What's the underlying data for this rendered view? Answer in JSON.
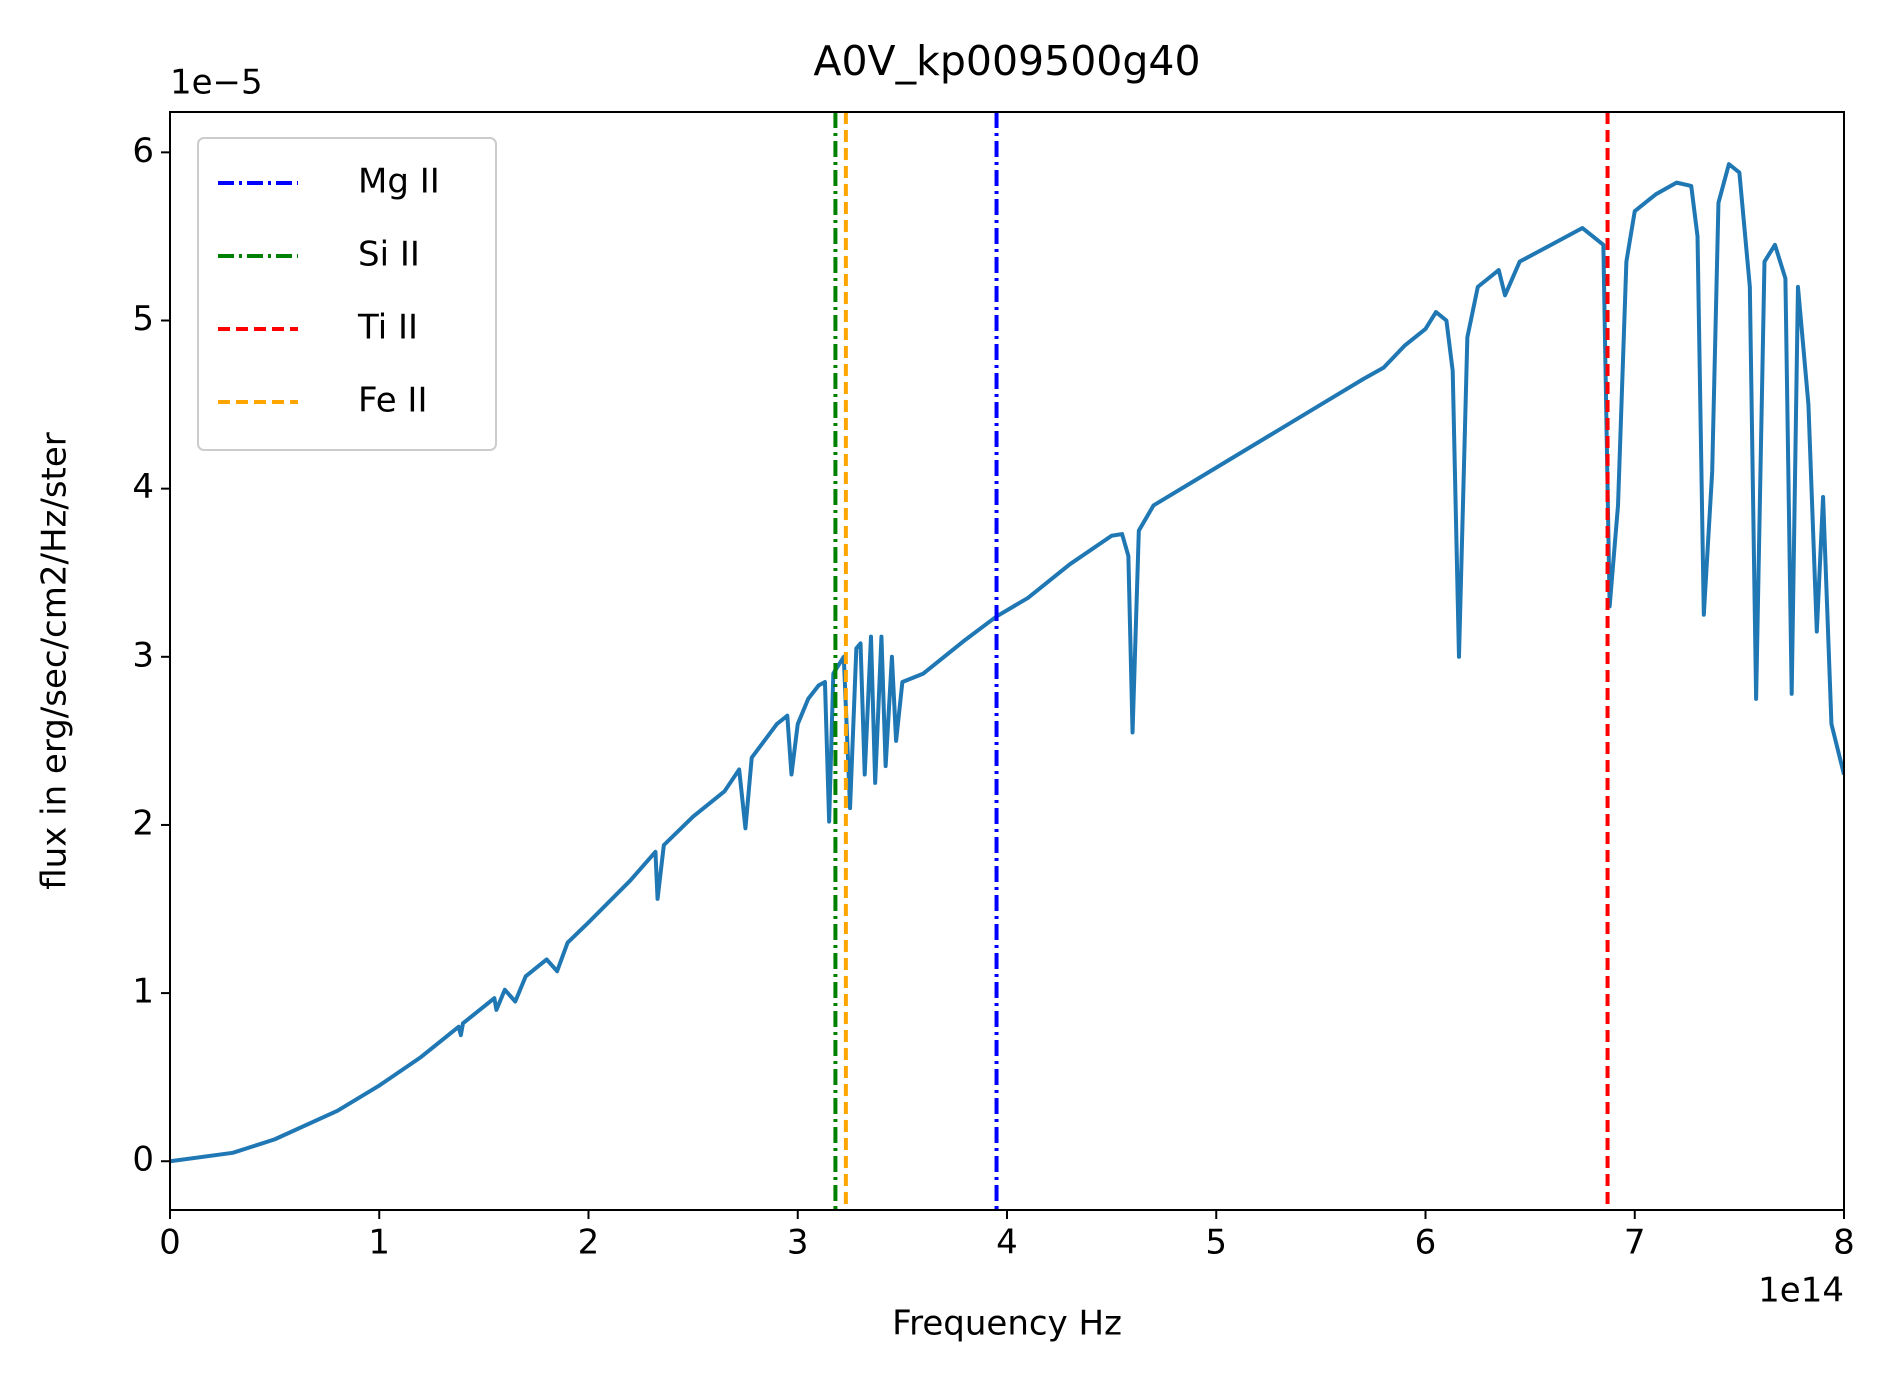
{
  "chart_data": {
    "type": "line",
    "title": "A0V_kp009500g40",
    "x_label": "Frequency Hz",
    "y_label": "flux in erg/sec/cm2/Hz/ster",
    "x_offset_text": "1e14",
    "y_offset_text": "1e−5",
    "xlim": [
      0,
      8
    ],
    "ylim": [
      -0.29,
      6.24
    ],
    "xticks": [
      0,
      1,
      2,
      3,
      4,
      5,
      6,
      7,
      8
    ],
    "yticks": [
      0,
      1,
      2,
      3,
      4,
      5,
      6
    ],
    "legend_position": "upper left",
    "series": [
      {
        "color": "#1f77b4",
        "x": [
          0,
          0.3,
          0.5,
          0.8,
          1.0,
          1.2,
          1.38,
          1.39,
          1.4,
          1.55,
          1.56,
          1.6,
          1.65,
          1.7,
          1.8,
          1.85,
          1.9,
          2.0,
          2.2,
          2.32,
          2.33,
          2.36,
          2.5,
          2.65,
          2.72,
          2.75,
          2.78,
          2.9,
          2.95,
          2.97,
          3.0,
          3.05,
          3.1,
          3.13,
          3.15,
          3.17,
          3.22,
          3.25,
          3.28,
          3.3,
          3.32,
          3.35,
          3.37,
          3.4,
          3.42,
          3.45,
          3.47,
          3.5,
          3.6,
          3.8,
          3.95,
          4.1,
          4.3,
          4.5,
          4.55,
          4.58,
          4.6,
          4.63,
          4.7,
          4.9,
          5.1,
          5.3,
          5.5,
          5.7,
          5.8,
          5.9,
          6.0,
          6.05,
          6.1,
          6.13,
          6.16,
          6.2,
          6.25,
          6.35,
          6.38,
          6.45,
          6.6,
          6.75,
          6.85,
          6.88,
          6.92,
          6.96,
          7.0,
          7.1,
          7.2,
          7.27,
          7.3,
          7.33,
          7.37,
          7.4,
          7.45,
          7.5,
          7.55,
          7.58,
          7.62,
          7.67,
          7.72,
          7.75,
          7.78,
          7.83,
          7.87,
          7.9,
          7.94,
          8.0
        ],
        "values": [
          0,
          0.05,
          0.13,
          0.3,
          0.45,
          0.62,
          0.8,
          0.75,
          0.82,
          0.97,
          0.9,
          1.02,
          0.95,
          1.1,
          1.2,
          1.13,
          1.3,
          1.42,
          1.67,
          1.84,
          1.56,
          1.88,
          2.05,
          2.2,
          2.33,
          1.98,
          2.4,
          2.6,
          2.65,
          2.3,
          2.6,
          2.75,
          2.83,
          2.85,
          2.02,
          2.9,
          3.0,
          2.1,
          3.05,
          3.08,
          2.3,
          3.12,
          2.25,
          3.12,
          2.35,
          3.0,
          2.5,
          2.85,
          2.9,
          3.1,
          3.24,
          3.35,
          3.55,
          3.72,
          3.73,
          3.6,
          2.55,
          3.75,
          3.9,
          4.05,
          4.2,
          4.35,
          4.5,
          4.65,
          4.72,
          4.85,
          4.95,
          5.05,
          5.0,
          4.7,
          3.0,
          4.9,
          5.2,
          5.3,
          5.15,
          5.35,
          5.45,
          5.55,
          5.45,
          3.3,
          3.9,
          5.35,
          5.65,
          5.75,
          5.82,
          5.8,
          5.5,
          3.25,
          4.1,
          5.7,
          5.93,
          5.88,
          5.2,
          2.75,
          5.35,
          5.45,
          5.25,
          2.78,
          5.2,
          4.5,
          3.15,
          3.95,
          2.6,
          2.3
        ]
      }
    ],
    "vlines": [
      {
        "name": "Mg II",
        "color": "blue",
        "style": "dashdot",
        "x": 3.95
      },
      {
        "name": "Si II",
        "color": "green",
        "style": "dashdot",
        "x": 3.18
      },
      {
        "name": "Ti II",
        "color": "red",
        "style": "dashed",
        "x": 6.87
      },
      {
        "name": "Fe II",
        "color": "orange",
        "style": "dashed",
        "x": 3.23
      }
    ]
  }
}
